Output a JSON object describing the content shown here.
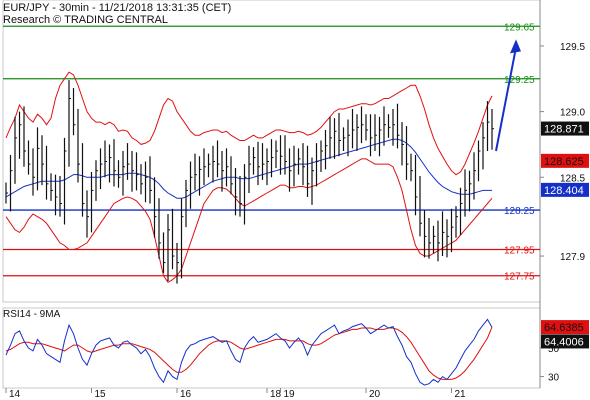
{
  "header": {
    "title": "EUR/JPY - 30min - 11/21/2018 13:31:35 (CET)",
    "source": "Research © TRADING CENTRAL"
  },
  "chart_data": {
    "type": "line",
    "price_panel": {
      "ylim": [
        127.55,
        129.85
      ],
      "y_ticks": [
        127.9,
        128.5,
        129.0,
        129.5
      ],
      "y_tick_labels": [
        "127.9",
        "128.5",
        "129.0",
        "129.5"
      ],
      "levels": [
        {
          "value": 129.65,
          "label": "129.65",
          "color": "#168d16"
        },
        {
          "value": 129.25,
          "label": "129.25",
          "color": "#168d16"
        },
        {
          "value": 128.25,
          "label": "128.25",
          "color": "#1530c8"
        },
        {
          "value": 127.95,
          "label": "127.95",
          "color": "#e01010"
        },
        {
          "value": 127.75,
          "label": "127.75",
          "color": "#e01010"
        }
      ],
      "current_price": {
        "value": 128.871,
        "label": "128.871"
      },
      "moving_average_red": {
        "value": 128.625,
        "label": "128.625",
        "color": "#e01010"
      },
      "moving_average_blue": {
        "value": 128.404,
        "label": "128.404",
        "color": "#1530c8"
      },
      "projection": {
        "from": 128.7,
        "to": 129.55,
        "color": "#1530c8"
      },
      "close_series": [
        128.38,
        128.55,
        128.8,
        128.9,
        128.7,
        128.6,
        128.5,
        128.72,
        128.6,
        128.45,
        128.4,
        128.35,
        128.3,
        128.7,
        129.1,
        128.9,
        128.6,
        128.3,
        128.2,
        128.4,
        128.55,
        128.6,
        128.62,
        128.65,
        128.55,
        128.5,
        128.58,
        128.6,
        128.55,
        128.52,
        128.45,
        128.5,
        128.4,
        128.2,
        128.0,
        127.85,
        128.1,
        127.9,
        127.85,
        128.2,
        128.4,
        128.5,
        128.52,
        128.56,
        128.58,
        128.6,
        128.62,
        128.6,
        128.55,
        128.58,
        128.45,
        128.35,
        128.3,
        128.5,
        128.6,
        128.65,
        128.58,
        128.6,
        128.62,
        128.65,
        128.7,
        128.66,
        128.62,
        128.55,
        128.6,
        128.64,
        128.58,
        128.45,
        128.55,
        128.62,
        128.7,
        128.74,
        128.8,
        128.85,
        128.78,
        128.8,
        128.82,
        128.86,
        128.88,
        128.9,
        128.86,
        128.8,
        128.82,
        128.86,
        128.9,
        128.88,
        128.9,
        128.82,
        128.75,
        128.6,
        128.55,
        128.35,
        128.15,
        128.05,
        128.0,
        128.05,
        128.0,
        128.08,
        128.05,
        128.12,
        128.2,
        128.3,
        128.4,
        128.45,
        128.55,
        128.7,
        128.8,
        128.92,
        128.87
      ],
      "bollinger_upper": [
        128.8,
        128.88,
        128.95,
        129.05,
        129.0,
        128.95,
        128.92,
        128.98,
        128.95,
        128.9,
        128.95,
        129.1,
        129.2,
        129.25,
        129.3,
        129.28,
        129.2,
        129.1,
        129.0,
        128.95,
        128.92,
        128.92,
        128.9,
        128.92,
        128.9,
        128.85,
        128.86,
        128.85,
        128.8,
        128.78,
        128.75,
        128.76,
        128.78,
        128.85,
        128.95,
        129.05,
        129.1,
        129.08,
        129.0,
        128.95,
        128.9,
        128.85,
        128.82,
        128.82,
        128.84,
        128.85,
        128.86,
        128.86,
        128.84,
        128.85,
        128.82,
        128.8,
        128.78,
        128.78,
        128.8,
        128.82,
        128.8,
        128.8,
        128.82,
        128.84,
        128.86,
        128.86,
        128.85,
        128.84,
        128.84,
        128.85,
        128.84,
        128.82,
        128.83,
        128.85,
        128.88,
        128.92,
        128.96,
        129.0,
        129.02,
        129.02,
        129.03,
        129.04,
        129.05,
        129.06,
        129.06,
        129.05,
        129.06,
        129.08,
        129.1,
        129.1,
        129.12,
        129.14,
        129.16,
        129.18,
        129.2,
        129.2,
        129.12,
        129.02,
        128.9,
        128.8,
        128.72,
        128.66,
        128.6,
        128.55,
        128.52,
        128.54,
        128.6,
        128.68,
        128.76,
        128.85,
        128.95,
        129.05,
        129.12
      ],
      "bollinger_lower": [
        128.2,
        128.15,
        128.1,
        128.08,
        128.12,
        128.18,
        128.22,
        128.2,
        128.18,
        128.15,
        128.1,
        128.05,
        128.0,
        127.98,
        127.95,
        127.95,
        127.96,
        127.98,
        128.0,
        128.05,
        128.1,
        128.15,
        128.2,
        128.25,
        128.3,
        128.32,
        128.34,
        128.35,
        128.34,
        128.32,
        128.28,
        128.24,
        128.18,
        128.05,
        127.9,
        127.75,
        127.7,
        127.72,
        127.75,
        127.8,
        127.9,
        128.0,
        128.1,
        128.2,
        128.3,
        128.35,
        128.4,
        128.42,
        128.42,
        128.41,
        128.38,
        128.34,
        128.3,
        128.28,
        128.3,
        128.32,
        128.34,
        128.36,
        128.38,
        128.4,
        128.42,
        128.44,
        128.44,
        128.42,
        128.42,
        128.43,
        128.43,
        128.42,
        128.43,
        128.44,
        128.46,
        128.48,
        128.5,
        128.52,
        128.54,
        128.56,
        128.58,
        128.6,
        128.62,
        128.64,
        128.64,
        128.62,
        128.6,
        128.6,
        128.6,
        128.6,
        128.58,
        128.5,
        128.4,
        128.25,
        128.1,
        127.98,
        127.92,
        127.9,
        127.9,
        127.92,
        127.94,
        127.96,
        127.98,
        128.0,
        128.02,
        128.06,
        128.1,
        128.14,
        128.18,
        128.22,
        128.26,
        128.3,
        128.34
      ],
      "ma_blue_series": [
        128.35,
        128.37,
        128.39,
        128.41,
        128.43,
        128.44,
        128.45,
        128.46,
        128.47,
        128.47,
        128.47,
        128.47,
        128.47,
        128.48,
        128.5,
        128.52,
        128.52,
        128.51,
        128.5,
        128.5,
        128.5,
        128.5,
        128.51,
        128.52,
        128.52,
        128.52,
        128.52,
        128.53,
        128.53,
        128.53,
        128.52,
        128.51,
        128.5,
        128.48,
        128.45,
        128.41,
        128.38,
        128.36,
        128.34,
        128.34,
        128.35,
        128.37,
        128.39,
        128.41,
        128.43,
        128.45,
        128.47,
        128.48,
        128.49,
        128.5,
        128.5,
        128.5,
        128.49,
        128.49,
        128.49,
        128.5,
        128.51,
        128.52,
        128.53,
        128.54,
        128.55,
        128.56,
        128.57,
        128.58,
        128.59,
        128.6,
        128.6,
        128.6,
        128.61,
        128.62,
        128.63,
        128.64,
        128.65,
        128.66,
        128.67,
        128.68,
        128.69,
        128.7,
        128.71,
        128.72,
        128.73,
        128.74,
        128.75,
        128.76,
        128.77,
        128.78,
        128.79,
        128.79,
        128.78,
        128.76,
        128.73,
        128.69,
        128.64,
        128.59,
        128.54,
        128.5,
        128.46,
        128.43,
        128.41,
        128.39,
        128.38,
        128.37,
        128.37,
        128.37,
        128.38,
        128.39,
        128.4,
        128.4,
        128.4
      ]
    },
    "rsi_panel": {
      "title": "RSI14 - 9MA",
      "ylim": [
        22,
        78
      ],
      "y_ticks": [
        30,
        50
      ],
      "y_tick_labels": [
        "30",
        "50"
      ],
      "rsi_value": {
        "value": 64.4006,
        "label": "64.4006"
      },
      "ma_value": {
        "value": 64.6385,
        "label": "64.6385"
      },
      "rsi_series": [
        45,
        52,
        60,
        62,
        55,
        50,
        48,
        56,
        52,
        46,
        44,
        42,
        40,
        55,
        66,
        60,
        50,
        42,
        38,
        46,
        52,
        55,
        56,
        57,
        52,
        50,
        54,
        55,
        52,
        50,
        46,
        49,
        44,
        36,
        30,
        26,
        34,
        30,
        28,
        40,
        48,
        52,
        53,
        55,
        56,
        57,
        58,
        56,
        54,
        55,
        48,
        42,
        40,
        50,
        55,
        58,
        54,
        55,
        56,
        58,
        60,
        57,
        55,
        50,
        54,
        57,
        53,
        45,
        52,
        56,
        60,
        62,
        64,
        66,
        60,
        62,
        63,
        65,
        66,
        67,
        64,
        60,
        62,
        64,
        66,
        64,
        65,
        58,
        52,
        44,
        40,
        32,
        26,
        24,
        25,
        28,
        26,
        30,
        28,
        32,
        36,
        42,
        48,
        52,
        56,
        62,
        66,
        70,
        64.4
      ],
      "ma_series": [
        48,
        49,
        51,
        53,
        54,
        54,
        53,
        53,
        53,
        52,
        51,
        50,
        49,
        48,
        50,
        52,
        52,
        50,
        48,
        47,
        48,
        49,
        50,
        51,
        52,
        52,
        53,
        53,
        53,
        52,
        51,
        50,
        49,
        47,
        44,
        41,
        38,
        35,
        33,
        33,
        35,
        38,
        42,
        46,
        49,
        52,
        54,
        55,
        55,
        55,
        54,
        52,
        50,
        49,
        50,
        51,
        52,
        53,
        54,
        55,
        56,
        56,
        56,
        55,
        55,
        55,
        55,
        53,
        52,
        52,
        53,
        55,
        57,
        59,
        60,
        61,
        62,
        63,
        63,
        64,
        64,
        64,
        63,
        63,
        63,
        64,
        64,
        63,
        61,
        58,
        54,
        49,
        44,
        39,
        34,
        31,
        29,
        28,
        28,
        28,
        29,
        31,
        34,
        38,
        42,
        47,
        52,
        57,
        64.6
      ]
    },
    "x_labels": [
      {
        "label": "14",
        "index": 0
      },
      {
        "label": "15",
        "index": 19
      },
      {
        "label": "16",
        "index": 38
      },
      {
        "label": "18",
        "index": 58
      },
      {
        "label": "19",
        "index": 61
      },
      {
        "label": "20",
        "index": 80
      },
      {
        "label": "21",
        "index": 99
      }
    ]
  }
}
